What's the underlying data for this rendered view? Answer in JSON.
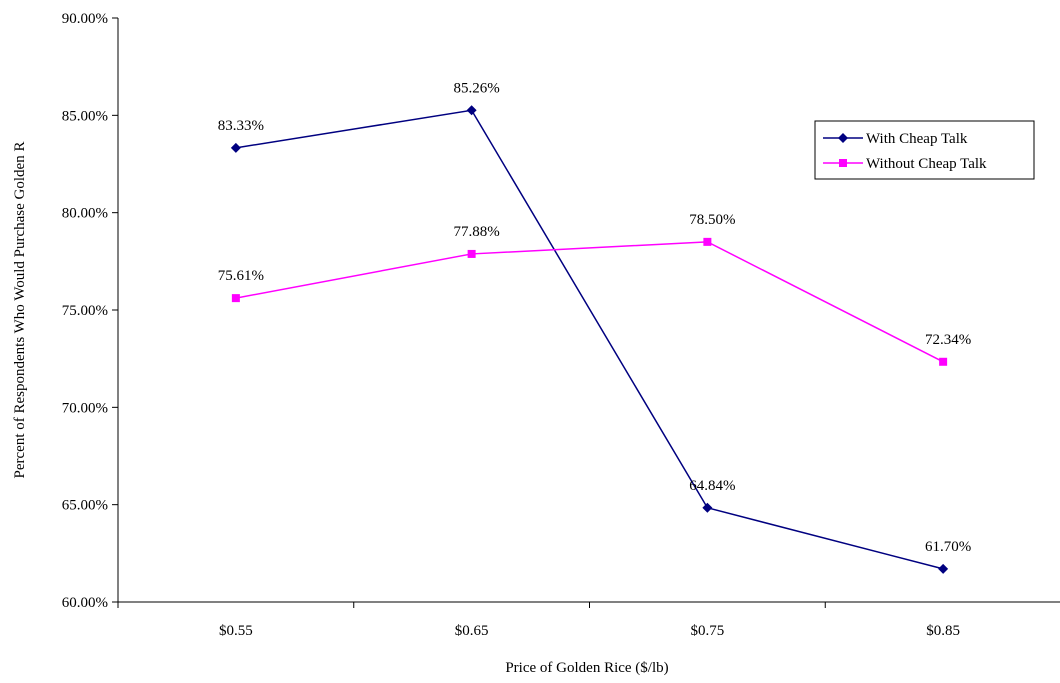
{
  "chart_data": {
    "type": "line",
    "title": "",
    "xlabel": "Price of Golden Rice ($/lb)",
    "ylabel": "Percent of Respondents Who Would Purchase Golden R",
    "categories": [
      "$0.55",
      "$0.65",
      "$0.75",
      "$0.85"
    ],
    "ylim": [
      60,
      90
    ],
    "y_ticks": [
      60,
      65,
      70,
      75,
      80,
      85,
      90
    ],
    "y_tick_labels": [
      "60.00%",
      "65.00%",
      "70.00%",
      "75.00%",
      "80.00%",
      "85.00%",
      "90.00%"
    ],
    "grid": false,
    "legend_position": "top-right",
    "series": [
      {
        "name": "With Cheap Talk",
        "color": "#000080",
        "marker": "diamond",
        "values": [
          83.33,
          85.26,
          64.84,
          61.7
        ],
        "labels": [
          "83.33%",
          "85.26%",
          "64.84%",
          "61.70%"
        ]
      },
      {
        "name": "Without Cheap Talk",
        "color": "#FF00FF",
        "marker": "square",
        "values": [
          75.61,
          77.88,
          78.5,
          72.34
        ],
        "labels": [
          "75.61%",
          "77.88%",
          "78.50%",
          "72.34%"
        ]
      }
    ]
  }
}
